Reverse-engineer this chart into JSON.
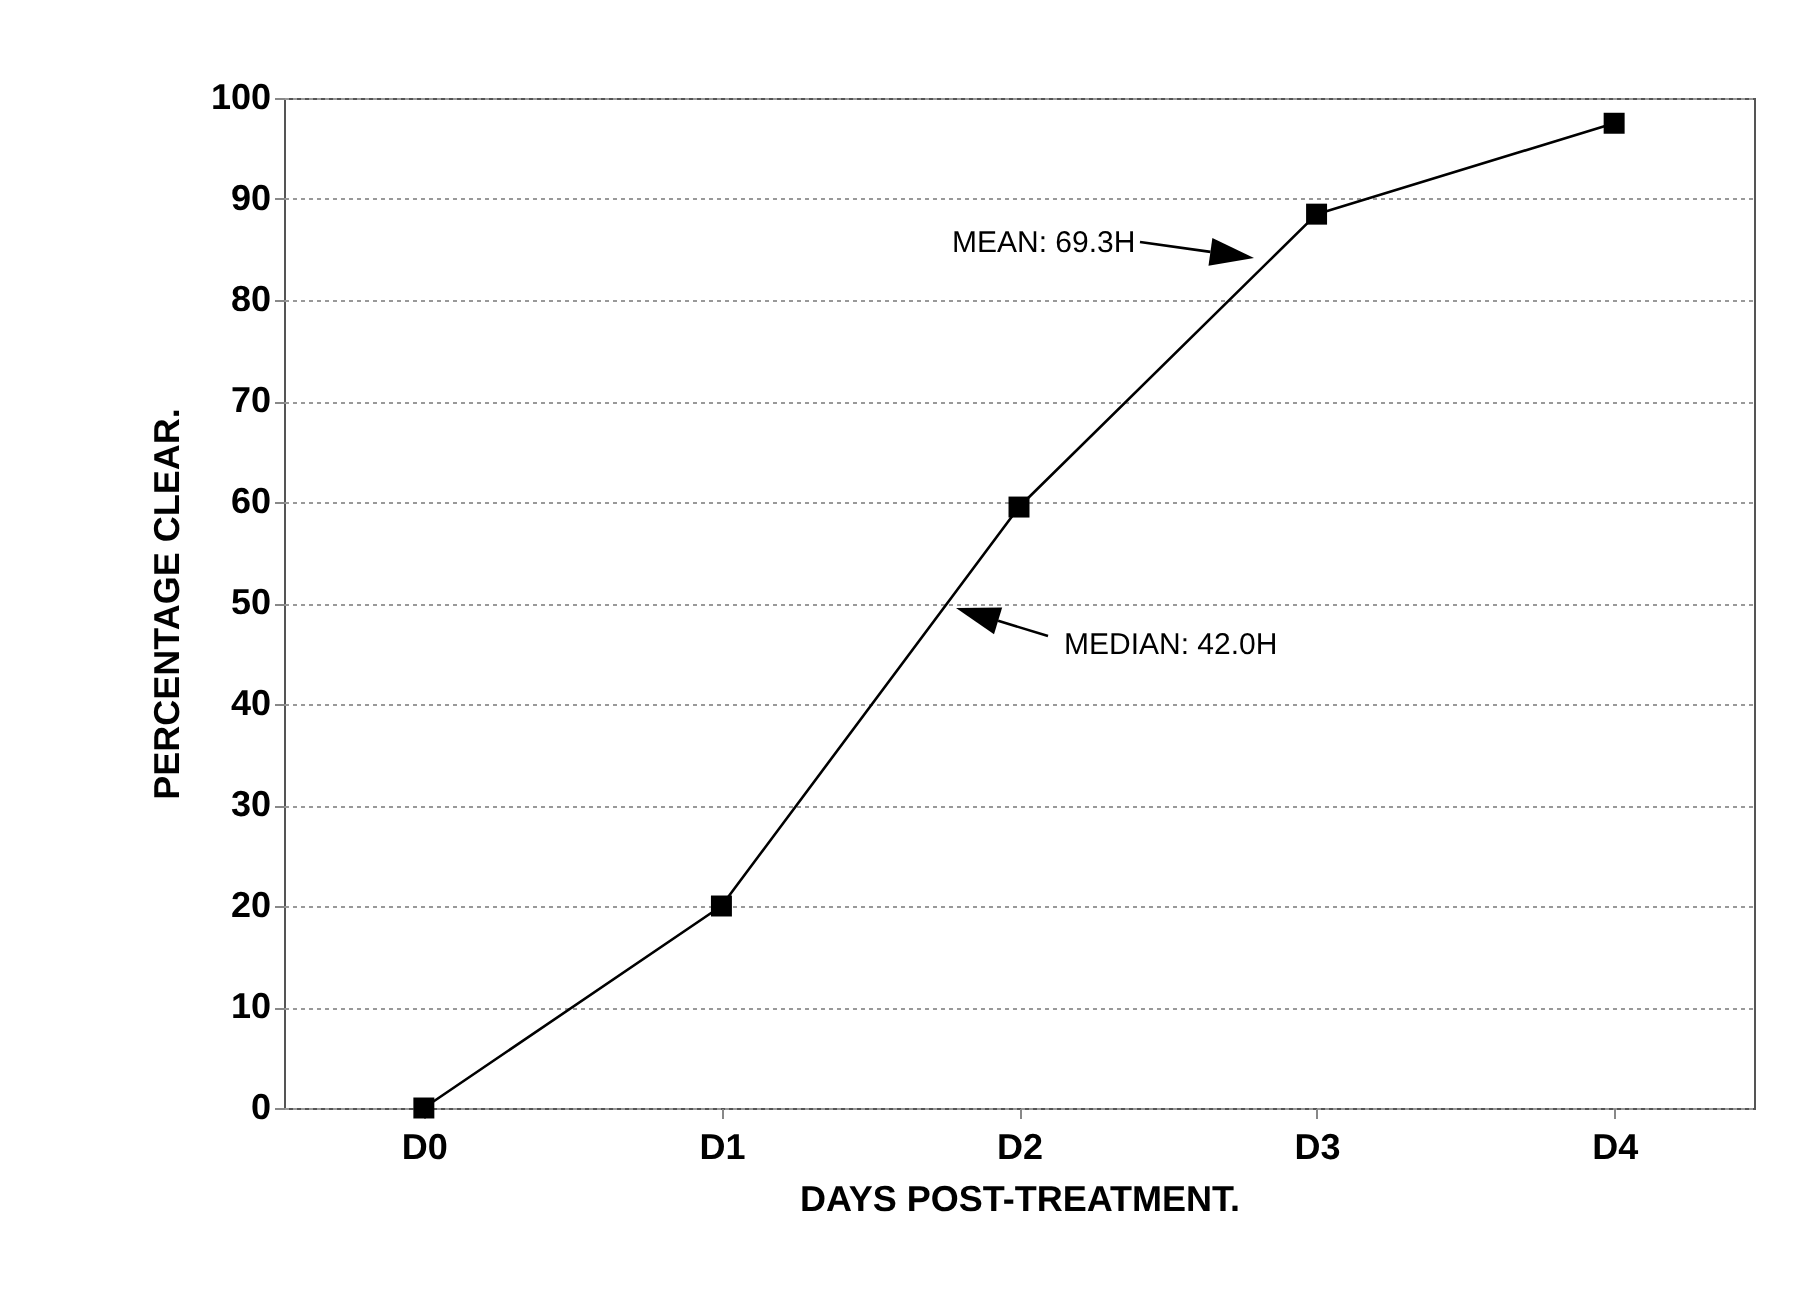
{
  "chart_data": {
    "type": "line",
    "categories": [
      "D0",
      "D1",
      "D2",
      "D3",
      "D4"
    ],
    "series": [
      {
        "color": "#000000",
        "values": [
          0,
          20,
          59.5,
          88.5,
          97.5
        ]
      }
    ],
    "xlabel": "DAYS POST-TREATMENT.",
    "ylabel": "PERCENTAGE CLEAR.",
    "ylim": [
      0,
      100
    ],
    "yticks": [
      0,
      10,
      20,
      30,
      40,
      50,
      60,
      70,
      80,
      90,
      100
    ],
    "grid": "y",
    "marker": "square",
    "line_style": "solid",
    "annotations": [
      "MEAN: 69.3H",
      "MEDIAN: 42.0H"
    ]
  }
}
